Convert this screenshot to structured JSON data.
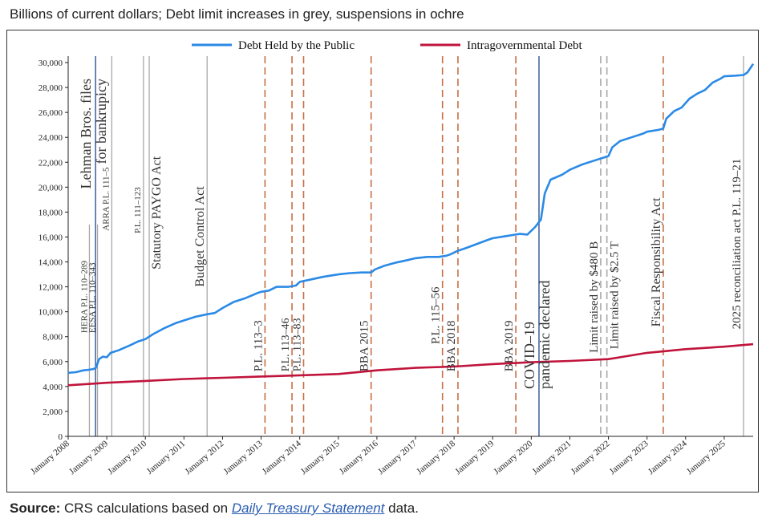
{
  "subtitle": "Billions of current dollars; Debt limit increases in grey, suspensions in ochre",
  "source": {
    "label": "Source:",
    "text_before": " CRS calculations based on ",
    "link_text": "Daily Treasury Statement",
    "text_after": " data."
  },
  "colors": {
    "public": "#2b8ae6",
    "intragov": "#c0143c",
    "increase": "#a8a8a8",
    "suspension": "#c86e46",
    "event_blue": "#3a5f9a"
  },
  "chart_data": {
    "type": "line",
    "title": "",
    "xlabel": "",
    "ylabel": "",
    "xlim": [
      2008.0,
      2025.75
    ],
    "ylim": [
      0,
      30000
    ],
    "yticks": [
      0,
      2000,
      4000,
      6000,
      8000,
      10000,
      12000,
      14000,
      16000,
      18000,
      20000,
      22000,
      24000,
      26000,
      28000,
      30000
    ],
    "ytick_labels": [
      "0",
      "2,000",
      "4,000",
      "6,000",
      "8,000",
      "10,000",
      "12,000",
      "14,000",
      "16,000",
      "18,000",
      "20,000",
      "22,000",
      "24,000",
      "26,000",
      "28,000",
      "30,000"
    ],
    "xtick_labels": [
      "January 2008",
      "January 2009",
      "January 2010",
      "January 2011",
      "January 2012",
      "January 2013",
      "January 2014",
      "January 2015",
      "January 2016",
      "January 2017",
      "January 2018",
      "January 2019",
      "January 2020",
      "January 2021",
      "January 2022",
      "January 2023",
      "January 2024",
      "January 2025"
    ],
    "legend": [
      "Debt Held by the Public",
      "Intragovernmental Debt"
    ],
    "legend_position": "top-center",
    "series": [
      {
        "name": "Debt Held by the Public",
        "x": [
          2008.0,
          2008.2,
          2008.4,
          2008.55,
          2008.65,
          2008.72,
          2008.8,
          2008.9,
          2009.0,
          2009.1,
          2009.3,
          2009.6,
          2009.8,
          2010.0,
          2010.2,
          2010.5,
          2010.8,
          2011.0,
          2011.3,
          2011.6,
          2011.8,
          2012.0,
          2012.3,
          2012.6,
          2012.9,
          2013.0,
          2013.2,
          2013.4,
          2013.7,
          2013.9,
          2014.0,
          2014.3,
          2014.6,
          2014.9,
          2015.0,
          2015.3,
          2015.6,
          2015.85,
          2015.95,
          2016.2,
          2016.5,
          2016.8,
          2017.0,
          2017.3,
          2017.6,
          2017.8,
          2017.9,
          2018.1,
          2018.3,
          2018.6,
          2018.9,
          2019.0,
          2019.3,
          2019.6,
          2019.7,
          2019.9,
          2020.1,
          2020.2,
          2020.25,
          2020.35,
          2020.5,
          2020.8,
          2021.0,
          2021.3,
          2021.6,
          2021.8,
          2021.9,
          2022.0,
          2022.1,
          2022.3,
          2022.6,
          2022.9,
          2023.0,
          2023.3,
          2023.42,
          2023.5,
          2023.7,
          2023.9,
          2024.1,
          2024.3,
          2024.5,
          2024.7,
          2024.9,
          2025.0,
          2025.3,
          2025.5,
          2025.6,
          2025.75
        ],
        "values": [
          5100,
          5150,
          5300,
          5350,
          5400,
          5500,
          6200,
          6400,
          6350,
          6700,
          6900,
          7300,
          7600,
          7800,
          8200,
          8700,
          9100,
          9300,
          9600,
          9800,
          9900,
          10300,
          10800,
          11100,
          11500,
          11600,
          11700,
          12000,
          12000,
          12100,
          12400,
          12600,
          12800,
          12950,
          13000,
          13100,
          13150,
          13150,
          13400,
          13700,
          13950,
          14150,
          14300,
          14400,
          14400,
          14500,
          14600,
          14900,
          15100,
          15450,
          15800,
          15900,
          16050,
          16200,
          16250,
          16200,
          16800,
          17200,
          17400,
          19500,
          20600,
          21000,
          21400,
          21800,
          22100,
          22300,
          22400,
          22500,
          23200,
          23700,
          24000,
          24300,
          24450,
          24600,
          24700,
          25500,
          26100,
          26400,
          27100,
          27500,
          27800,
          28400,
          28700,
          28900,
          28950,
          29000,
          29200,
          29900
        ]
      },
      {
        "name": "Intragovernmental Debt",
        "x": [
          2008.0,
          2009.0,
          2010.0,
          2011.0,
          2012.0,
          2013.0,
          2014.0,
          2015.0,
          2016.0,
          2017.0,
          2018.0,
          2019.0,
          2020.0,
          2021.0,
          2022.0,
          2023.0,
          2024.0,
          2025.0,
          2025.75
        ],
        "values": [
          4100,
          4300,
          4450,
          4600,
          4700,
          4800,
          4900,
          5000,
          5300,
          5500,
          5600,
          5800,
          5950,
          6050,
          6200,
          6700,
          7000,
          7200,
          7400
        ]
      }
    ],
    "events": [
      {
        "label": "HERA  P.L. 110–289",
        "x": 2008.55,
        "kind": "increase"
      },
      {
        "label": "Lehman Bros. files for bankrupicy",
        "x": 2008.71,
        "kind": "event"
      },
      {
        "label": "EESA  P.L. 110–343",
        "x": 2008.76,
        "kind": "increase"
      },
      {
        "label": "ARRA  P.L. 111–5",
        "x": 2009.13,
        "kind": "increase"
      },
      {
        "label": "P.L. 111–123",
        "x": 2009.95,
        "kind": "increase"
      },
      {
        "label": "Statutory PAYGO Act",
        "x": 2010.1,
        "kind": "increase"
      },
      {
        "label": "Budget Control Act",
        "x": 2011.6,
        "kind": "increase"
      },
      {
        "label": "P.L. 113–3",
        "x": 2013.1,
        "kind": "suspension"
      },
      {
        "label": "P.L. 113–46",
        "x": 2013.8,
        "kind": "suspension"
      },
      {
        "label": "P.L. 113–83",
        "x": 2014.1,
        "kind": "suspension"
      },
      {
        "label": "BBA 2015",
        "x": 2015.85,
        "kind": "suspension"
      },
      {
        "label": "P.L. 115–56",
        "x": 2017.7,
        "kind": "suspension"
      },
      {
        "label": "BBA 2018",
        "x": 2018.1,
        "kind": "suspension"
      },
      {
        "label": "BBA 2019",
        "x": 2019.6,
        "kind": "suspension"
      },
      {
        "label": "COVID–19 pandemic declared",
        "x": 2020.2,
        "kind": "event"
      },
      {
        "label": "Limit raised by $480 B",
        "x": 2021.8,
        "kind": "increase_dashed"
      },
      {
        "label": "Limit raised by $2.5 T",
        "x": 2021.96,
        "kind": "increase_dashed"
      },
      {
        "label": "Fiscal Responsibility Act",
        "x": 2023.42,
        "kind": "suspension"
      },
      {
        "label": "2025 reconciliation act P.L. 119–21",
        "x": 2025.5,
        "kind": "increase"
      }
    ]
  }
}
